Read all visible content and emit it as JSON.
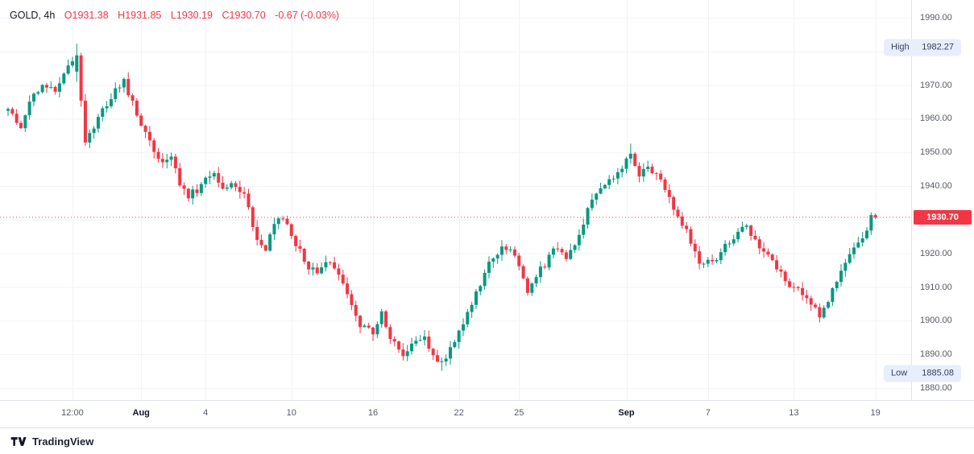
{
  "legend": {
    "title": "GOLD, 4h",
    "o": "O1931.38",
    "h": "H1931.85",
    "l": "L1930.19",
    "c": "C1930.70",
    "change": "-0.67 (-0.03%)"
  },
  "badges": {
    "high_label": "High",
    "high_value": "1982.27",
    "low_label": "Low",
    "low_value": "1885.08"
  },
  "price_axis": {
    "ticks": [
      "1990.00",
      "1980.00",
      "1970.00",
      "1960.00",
      "1950.00",
      "1940.00",
      "1930.00",
      "1920.00",
      "1910.00",
      "1900.00",
      "1890.00",
      "1880.00"
    ],
    "last_price_label": "1930.70"
  },
  "footer": {
    "brand": "TradingView"
  },
  "colors": {
    "up": "#089981",
    "down": "#f23645",
    "last_price_bg": "#f23645",
    "grid": "#f1f3f8",
    "axis_text": "#555a64",
    "badge_bg": "#e8eefb",
    "badge_text": "#36415f"
  },
  "chart_data": {
    "type": "candlestick",
    "symbol": "GOLD",
    "interval": "4h",
    "ylim": [
      1877,
      1993
    ],
    "y_ticks": [
      1990,
      1980,
      1970,
      1960,
      1950,
      1940,
      1930,
      1920,
      1910,
      1900,
      1890,
      1880
    ],
    "n_candles": 203,
    "time_ticks": [
      {
        "i": 15,
        "label": "12:00",
        "major": false
      },
      {
        "i": 31,
        "label": "Aug",
        "major": true
      },
      {
        "i": 46,
        "label": "4",
        "major": false
      },
      {
        "i": 66,
        "label": "10",
        "major": false
      },
      {
        "i": 85,
        "label": "16",
        "major": false
      },
      {
        "i": 105,
        "label": "22",
        "major": false
      },
      {
        "i": 119,
        "label": "25",
        "major": false
      },
      {
        "i": 144,
        "label": "Sep",
        "major": true
      },
      {
        "i": 163,
        "label": "7",
        "major": false
      },
      {
        "i": 183,
        "label": "13",
        "major": false
      },
      {
        "i": 202,
        "label": "19",
        "major": false
      }
    ],
    "anchors": [
      [
        0,
        1963
      ],
      [
        3,
        1958
      ],
      [
        5,
        1965
      ],
      [
        8,
        1969
      ],
      [
        11,
        1968
      ],
      [
        14,
        1977
      ],
      [
        16,
        1979
      ],
      [
        17,
        1966
      ],
      [
        18,
        1953
      ],
      [
        20,
        1957
      ],
      [
        22,
        1962
      ],
      [
        25,
        1969
      ],
      [
        27,
        1971
      ],
      [
        30,
        1961
      ],
      [
        33,
        1954
      ],
      [
        36,
        1946
      ],
      [
        38,
        1949
      ],
      [
        40,
        1941
      ],
      [
        42,
        1937
      ],
      [
        45,
        1940
      ],
      [
        48,
        1944
      ],
      [
        50,
        1939
      ],
      [
        52,
        1941
      ],
      [
        55,
        1937
      ],
      [
        58,
        1924
      ],
      [
        60,
        1922
      ],
      [
        63,
        1931
      ],
      [
        66,
        1926
      ],
      [
        69,
        1918
      ],
      [
        72,
        1913
      ],
      [
        75,
        1918
      ],
      [
        77,
        1913
      ],
      [
        80,
        1905
      ],
      [
        82,
        1899
      ],
      [
        85,
        1897
      ],
      [
        87,
        1902
      ],
      [
        89,
        1895
      ],
      [
        92,
        1889
      ],
      [
        94,
        1893
      ],
      [
        97,
        1895
      ],
      [
        99,
        1890
      ],
      [
        101,
        1887
      ],
      [
        104,
        1893
      ],
      [
        106,
        1899
      ],
      [
        109,
        1908
      ],
      [
        112,
        1917
      ],
      [
        115,
        1921
      ],
      [
        118,
        1920
      ],
      [
        120,
        1912
      ],
      [
        121,
        1908
      ],
      [
        124,
        1915
      ],
      [
        127,
        1921
      ],
      [
        130,
        1919
      ],
      [
        133,
        1925
      ],
      [
        136,
        1937
      ],
      [
        139,
        1940
      ],
      [
        142,
        1944
      ],
      [
        145,
        1949
      ],
      [
        147,
        1943
      ],
      [
        149,
        1946
      ],
      [
        152,
        1943
      ],
      [
        155,
        1934
      ],
      [
        158,
        1926
      ],
      [
        161,
        1918
      ],
      [
        164,
        1917
      ],
      [
        167,
        1922
      ],
      [
        170,
        1926
      ],
      [
        172,
        1928
      ],
      [
        175,
        1922
      ],
      [
        178,
        1917
      ],
      [
        181,
        1912
      ],
      [
        183,
        1910
      ],
      [
        186,
        1907
      ],
      [
        189,
        1902
      ],
      [
        192,
        1909
      ],
      [
        195,
        1916
      ],
      [
        198,
        1924
      ],
      [
        200,
        1927
      ],
      [
        202,
        1930.7
      ]
    ],
    "key_points": {
      "high": 1982.27,
      "high_index": 16,
      "low": 1885.08,
      "low_index": 101,
      "last": {
        "open": 1931.38,
        "high": 1931.85,
        "low": 1930.19,
        "close": 1930.7
      }
    },
    "last_price": 1930.7
  }
}
